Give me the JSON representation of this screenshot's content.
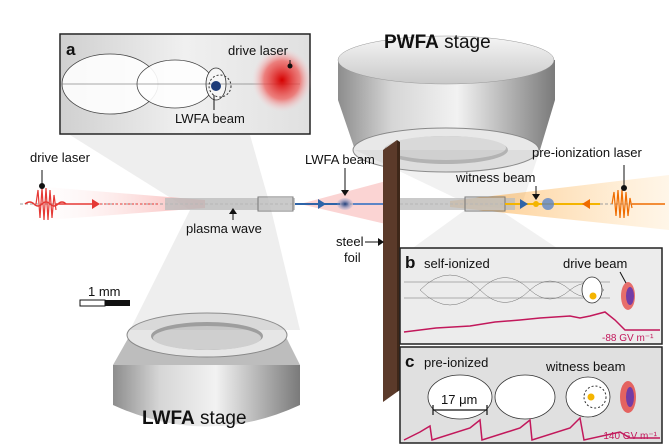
{
  "labels": {
    "drive_laser_left": "drive laser",
    "plasma_wave": "plasma wave",
    "lwfa_beam_main": "LWFA beam",
    "steel_foil_line1": "steel",
    "steel_foil_line2": "foil",
    "witness_beam_main": "witness beam",
    "pre_ionization_laser": "pre-ionization laser",
    "scale_bar": "1 mm"
  },
  "stages": {
    "pwfa": {
      "bold": "PWFA",
      "normal": " stage"
    },
    "lwfa": {
      "bold": "LWFA",
      "normal": " stage"
    }
  },
  "panels": {
    "a": {
      "letter": "a",
      "drive_laser": "drive laser",
      "lwfa_beam": "LWFA beam"
    },
    "b": {
      "letter": "b",
      "title": "self-ionized",
      "beam": "drive beam",
      "field": "-88 GV m⁻¹"
    },
    "c": {
      "letter": "c",
      "title": "pre-ionized",
      "beam": "witness beam",
      "scale": "17 μm",
      "field": "-140 GV m⁻¹"
    }
  },
  "colors": {
    "laser_red": "#e53935",
    "laser_orange": "#ef6c00",
    "beam_blue": "#2e64a8",
    "witness_yellow": "#f4b400",
    "field_magenta": "#c2185b",
    "foil_brown": "#5b3a2a"
  }
}
